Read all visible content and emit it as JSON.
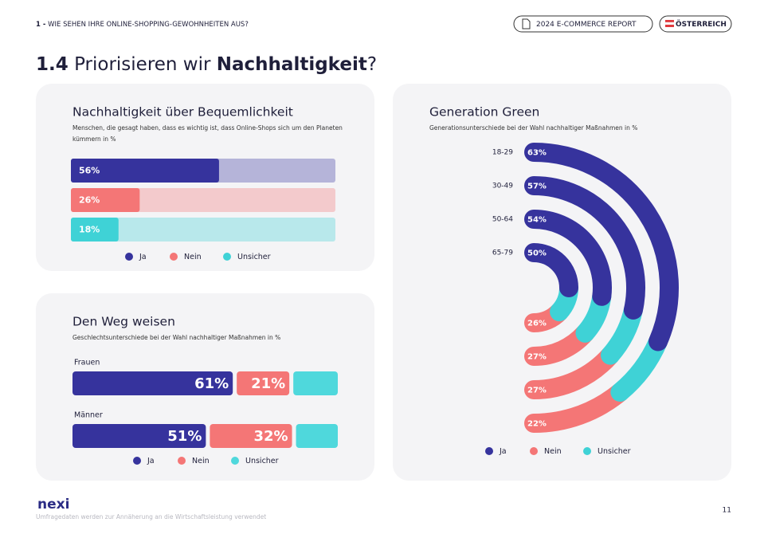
{
  "header": {
    "section_number": "1 -",
    "section": "WIE SEHEN IHRE ONLINE-SHOPPING-GEWOHNHEITEN AUS?",
    "badge": "2024 E-COMMERCE REPORT",
    "country": "ÖSTERREICH"
  },
  "page_title": {
    "number": "1.4",
    "text": "Priorisieren wir",
    "emphasis": "Nachhaltigkeit",
    "end": "?"
  },
  "footer": {
    "logo": "nexi",
    "note": "Umfragedaten werden zur Annäherung an die Wirtschaftsleistung verwendet",
    "page": "11"
  },
  "chart_data": [
    {
      "type": "bar",
      "title": "Nachhaltigkeit über Bequemlichkeit",
      "subtitle": "Menschen, die gesagt haben, dass es wichtig ist, dass Online-Shops sich um den Planeten kümmern in %",
      "xlim": [
        0,
        100
      ],
      "series": [
        {
          "name": "Ja",
          "color": "#36339d",
          "values": [
            56
          ],
          "value_labels": [
            "56%"
          ]
        },
        {
          "name": "Nein",
          "color": "#f47676",
          "values": [
            26
          ],
          "value_labels": [
            "26%"
          ]
        },
        {
          "name": "Unsicher",
          "color": "#3fd2d6",
          "values": [
            18
          ],
          "value_labels": [
            "18%"
          ]
        }
      ]
    },
    {
      "type": "stacked_bar",
      "title": "Den Weg weisen",
      "subtitle": "Geschlechtsunterschiede bei der Wahl nachhaltiger Maßnahmen in %",
      "xlim": [
        0,
        100
      ],
      "categories": [
        "Frauen",
        "Männer"
      ],
      "series": [
        {
          "name": "Ja",
          "color": "#36339d",
          "values": [
            61,
            51
          ],
          "value_labels": [
            "61%",
            "51%"
          ]
        },
        {
          "name": "Nein",
          "color": "#f47676",
          "values": [
            21,
            32
          ],
          "value_labels": [
            "21%",
            "32%"
          ]
        },
        {
          "name": "Unsicher",
          "color": "#4fd8dc",
          "values": [
            18,
            17
          ]
        }
      ]
    },
    {
      "type": "radial_bar",
      "title": "Generation Green",
      "subtitle": "Generationsunterschiede bei der Wahl nachhaltiger Maßnahmen in %",
      "xlim": [
        0,
        100
      ],
      "categories": [
        "18-29",
        "30-49",
        "50-64",
        "65-79"
      ],
      "series": [
        {
          "name": "Ja",
          "color": "#36339d",
          "values": [
            63,
            57,
            54,
            50
          ],
          "value_labels": [
            "63%",
            "57%",
            "54%",
            "50%"
          ]
        },
        {
          "name": "Nein",
          "color": "#f47676",
          "values": [
            22,
            27,
            27,
            26
          ],
          "value_labels": [
            "22%",
            "27%",
            "27%",
            "26%"
          ]
        },
        {
          "name": "Unsicher",
          "color": "#3fd2d6",
          "values": [
            15,
            16,
            19,
            24
          ]
        }
      ]
    }
  ]
}
